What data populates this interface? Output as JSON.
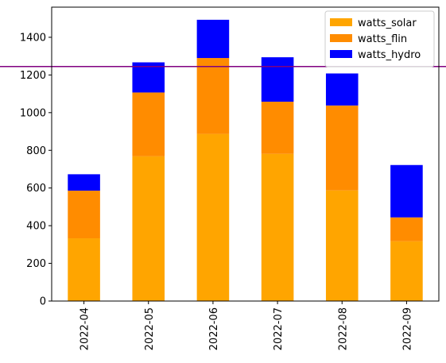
{
  "chart_data": {
    "type": "bar",
    "stacked": true,
    "categories": [
      "2022-04",
      "2022-05",
      "2022-06",
      "2022-07",
      "2022-08",
      "2022-09"
    ],
    "series": [
      {
        "name": "watts_solar",
        "color": "#FFA500",
        "values": [
          333,
          768,
          887,
          781,
          587,
          317
        ]
      },
      {
        "name": "watts_flin",
        "color": "#FF8C00",
        "values": [
          253,
          339,
          403,
          277,
          451,
          127
        ]
      },
      {
        "name": "watts_hydro",
        "color": "#0000FF",
        "values": [
          87,
          160,
          203,
          236,
          170,
          278
        ]
      }
    ],
    "hline": {
      "value": 1245,
      "color": "#800080"
    },
    "ylim": [
      0,
      1560
    ],
    "yticks": [
      0,
      200,
      400,
      600,
      800,
      1000,
      1200,
      1400
    ],
    "legend_position": "top-right",
    "grid": false,
    "title": "",
    "xlabel": "",
    "ylabel": ""
  }
}
